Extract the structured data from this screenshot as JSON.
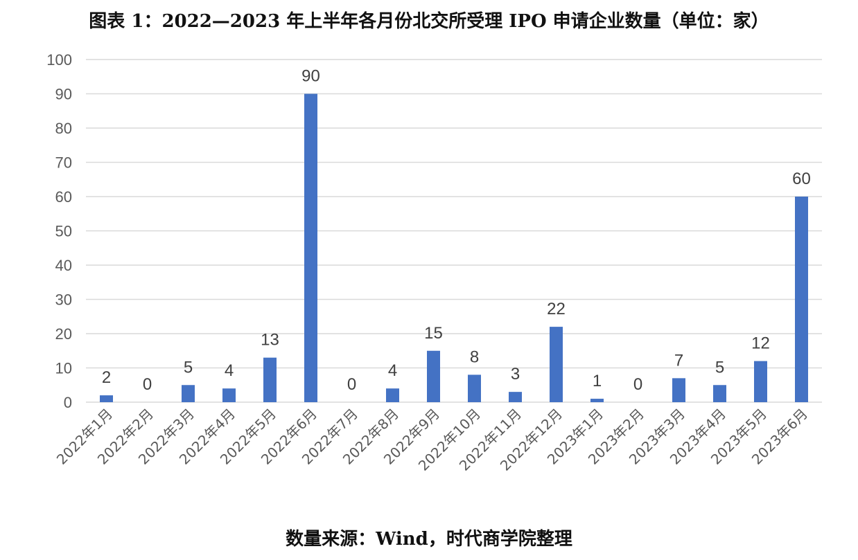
{
  "chart_data": {
    "type": "bar",
    "title": "图表 1：2022—2023 年上半年各月份北交所受理 IPO 申请企业数量（单位：家）",
    "source": "数量来源：Wind，时代商学院整理",
    "categories": [
      "2022年1月",
      "2022年2月",
      "2022年3月",
      "2022年4月",
      "2022年5月",
      "2022年6月",
      "2022年7月",
      "2022年8月",
      "2022年9月",
      "2022年10月",
      "2022年11月",
      "2022年12月",
      "2023年1月",
      "2023年2月",
      "2023年3月",
      "2023年4月",
      "2023年5月",
      "2023年6月"
    ],
    "values": [
      2,
      0,
      5,
      4,
      13,
      90,
      0,
      4,
      15,
      8,
      3,
      22,
      1,
      0,
      7,
      5,
      12,
      60
    ],
    "ylim": [
      0,
      100
    ],
    "yticks": [
      0,
      10,
      20,
      30,
      40,
      50,
      60,
      70,
      80,
      90,
      100
    ],
    "xlabel": "",
    "ylabel": "",
    "grid": true,
    "data_labels": true,
    "legend": "none",
    "colors": {
      "bar": "#4472C4",
      "grid": "#D9D9D9",
      "axis": "#D9D9D9"
    }
  }
}
